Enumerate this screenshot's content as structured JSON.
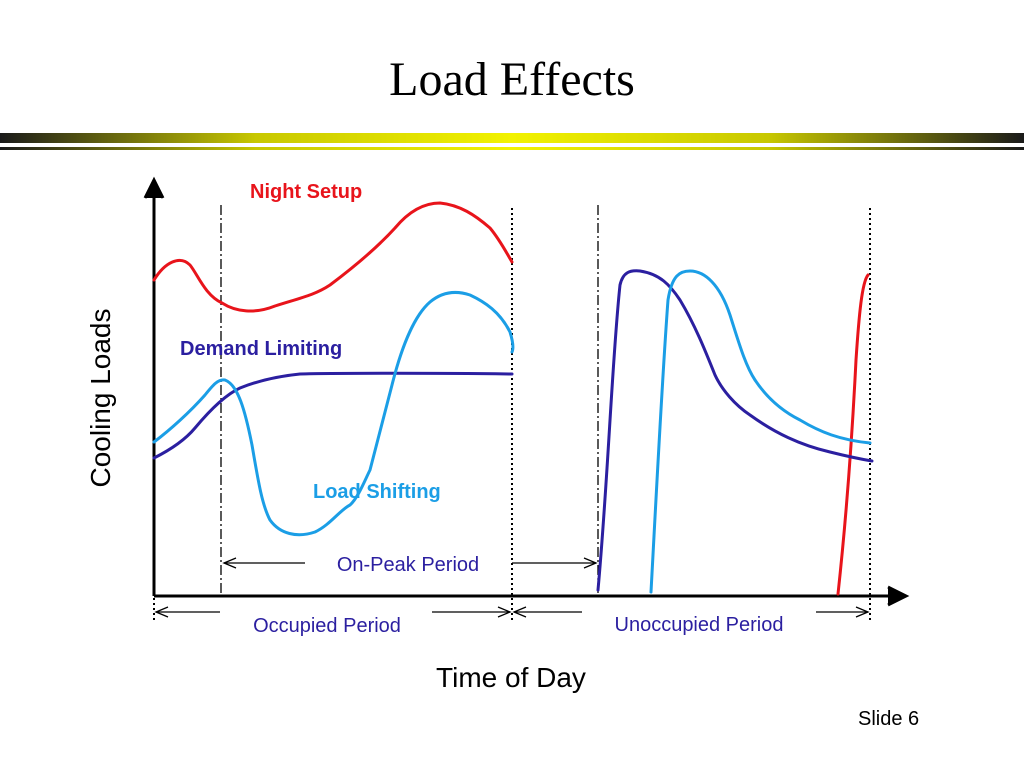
{
  "slide": {
    "title": "Load Effects",
    "number_label": "Slide 6"
  },
  "diagram": {
    "y_axis_label": "Cooling Loads",
    "x_axis_label": "Time of Day",
    "curve_labels": {
      "night_setup": "Night Setup",
      "demand_limiting": "Demand Limiting",
      "load_shifting": "Load Shifting"
    },
    "period_labels": {
      "on_peak": "On-Peak Period",
      "occupied": "Occupied Period",
      "unoccupied": "Unoccupied Period"
    },
    "colors": {
      "night_setup": "#e8141b",
      "demand_limiting": "#2b1fa0",
      "load_shifting": "#1b9ee6",
      "period_text": "#2b1fa0",
      "title_bar_yellow": "#f2f200",
      "title_bar_dark": "#1a1a1a"
    }
  }
}
